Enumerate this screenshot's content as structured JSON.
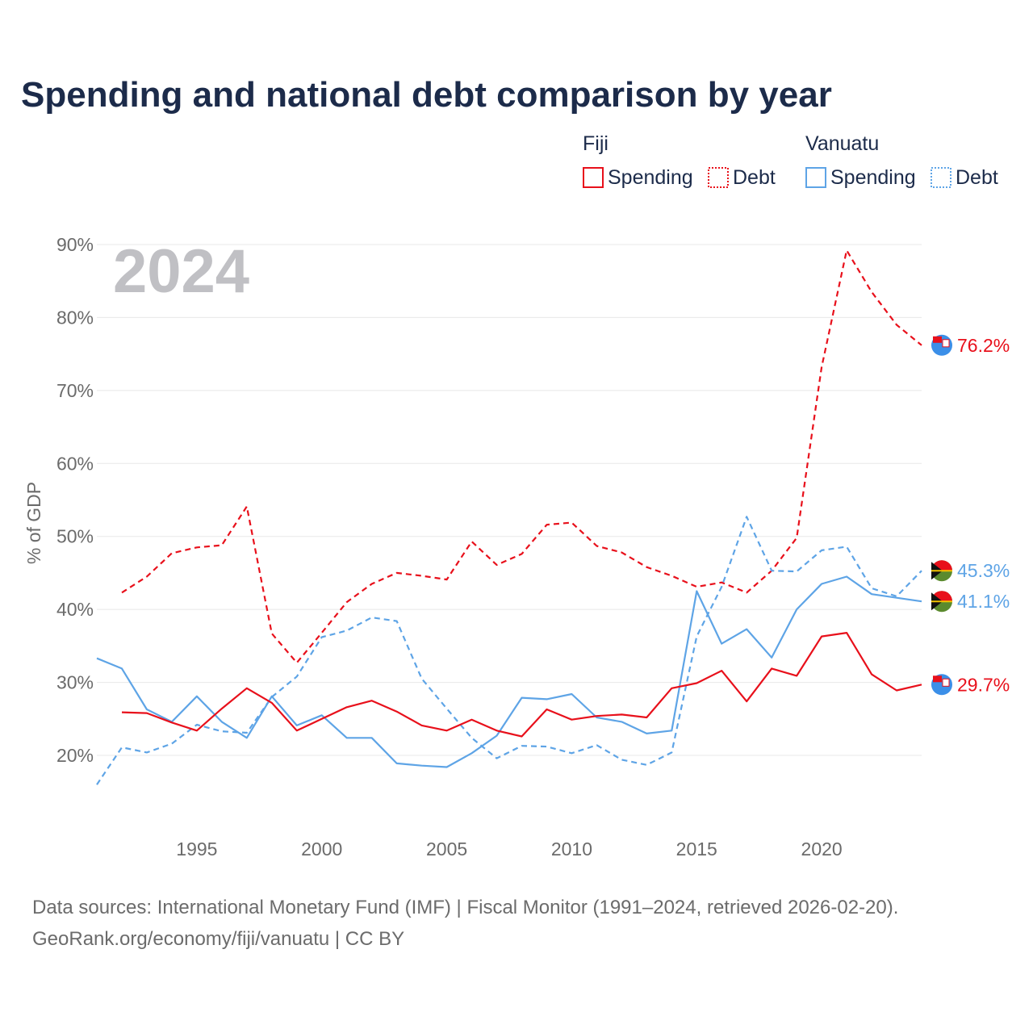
{
  "colors": {
    "fiji": "#e8101b",
    "vanuatu": "#5ea4e6",
    "title": "#1c2b4a",
    "muted": "#6b6b6b",
    "year": "#c0c0c4"
  },
  "chart_data": {
    "type": "line",
    "title": "Spending and national debt comparison by year",
    "ylabel": "% of GDP",
    "xlabel": "",
    "year_label": "2024",
    "xlim": [
      1991,
      2024
    ],
    "ylim": [
      12,
      92
    ],
    "x_ticks": [
      {
        "value": 1995,
        "label": "1995"
      },
      {
        "value": 2000,
        "label": "2000"
      },
      {
        "value": 2005,
        "label": "2005"
      },
      {
        "value": 2010,
        "label": "2010"
      },
      {
        "value": 2015,
        "label": "2015"
      },
      {
        "value": 2020,
        "label": "2020"
      }
    ],
    "y_ticks": [
      {
        "value": 20,
        "label": "20%"
      },
      {
        "value": 30,
        "label": "30%"
      },
      {
        "value": 40,
        "label": "40%"
      },
      {
        "value": 50,
        "label": "50%"
      },
      {
        "value": 60,
        "label": "60%"
      },
      {
        "value": 70,
        "label": "70%"
      },
      {
        "value": 80,
        "label": "80%"
      },
      {
        "value": 90,
        "label": "90%"
      }
    ],
    "legend": {
      "groups": [
        {
          "name": "Fiji",
          "items": [
            {
              "label": "Spending",
              "style": "solid",
              "color": "#e8101b"
            },
            {
              "label": "Debt",
              "style": "dotted",
              "color": "#e8101b"
            }
          ]
        },
        {
          "name": "Vanuatu",
          "items": [
            {
              "label": "Spending",
              "style": "solid",
              "color": "#5ea4e6"
            },
            {
              "label": "Debt",
              "style": "dotted",
              "color": "#5ea4e6"
            }
          ]
        }
      ]
    },
    "series": [
      {
        "name": "Fiji Debt",
        "country": "Fiji",
        "metric": "Debt",
        "dashed": true,
        "color": "#e8101b",
        "x": [
          1992,
          1993,
          1994,
          1995,
          1996,
          1997,
          1998,
          1999,
          2000,
          2001,
          2002,
          2003,
          2004,
          2005,
          2006,
          2007,
          2008,
          2009,
          2010,
          2011,
          2012,
          2013,
          2014,
          2015,
          2016,
          2017,
          2018,
          2019,
          2020,
          2021,
          2022,
          2023,
          2024
        ],
        "values": [
          42.3,
          44.5,
          47.7,
          48.5,
          48.8,
          54.1,
          36.7,
          32.7,
          36.8,
          41.0,
          43.5,
          45.0,
          44.6,
          44.1,
          49.3,
          46.1,
          47.6,
          51.6,
          51.9,
          48.7,
          47.8,
          45.8,
          44.6,
          43.1,
          43.7,
          42.3,
          45.3,
          49.8,
          73.2,
          89.2,
          83.5,
          79.0,
          76.2
        ],
        "end_label": "76.2%"
      },
      {
        "name": "Vanuatu Debt",
        "country": "Vanuatu",
        "metric": "Debt",
        "dashed": true,
        "color": "#5ea4e6",
        "x": [
          1991,
          1992,
          1993,
          1994,
          1995,
          1996,
          1997,
          1998,
          1999,
          2000,
          2001,
          2002,
          2003,
          2004,
          2005,
          2006,
          2007,
          2008,
          2009,
          2010,
          2011,
          2012,
          2013,
          2014,
          2015,
          2016,
          2017,
          2018,
          2019,
          2020,
          2021,
          2022,
          2023,
          2024
        ],
        "values": [
          16.0,
          21.1,
          20.4,
          21.6,
          24.2,
          23.3,
          23.1,
          28.0,
          30.8,
          36.2,
          37.1,
          38.9,
          38.4,
          30.5,
          26.4,
          22.4,
          19.6,
          21.3,
          21.2,
          20.3,
          21.4,
          19.4,
          18.7,
          20.4,
          36.3,
          43.1,
          52.7,
          45.3,
          45.2,
          48.1,
          48.6,
          42.9,
          41.8,
          45.3
        ],
        "end_label": "45.3%"
      },
      {
        "name": "Vanuatu Spending",
        "country": "Vanuatu",
        "metric": "Spending",
        "dashed": false,
        "color": "#5ea4e6",
        "x": [
          1991,
          1992,
          1993,
          1994,
          1995,
          1996,
          1997,
          1998,
          1999,
          2000,
          2001,
          2002,
          2003,
          2004,
          2005,
          2006,
          2007,
          2008,
          2009,
          2010,
          2011,
          2012,
          2013,
          2014,
          2015,
          2016,
          2017,
          2018,
          2019,
          2020,
          2021,
          2022,
          2023,
          2024
        ],
        "values": [
          33.3,
          31.9,
          26.3,
          24.6,
          28.1,
          24.6,
          22.4,
          28.1,
          24.1,
          25.5,
          22.4,
          22.4,
          18.9,
          18.6,
          18.4,
          20.3,
          22.7,
          27.9,
          27.7,
          28.4,
          25.2,
          24.6,
          23.0,
          23.4,
          42.5,
          35.3,
          37.3,
          33.4,
          40.0,
          43.5,
          44.5,
          42.1,
          41.6,
          41.1
        ],
        "end_label": "41.1%"
      },
      {
        "name": "Fiji Spending",
        "country": "Fiji",
        "metric": "Spending",
        "dashed": false,
        "color": "#e8101b",
        "x": [
          1992,
          1993,
          1994,
          1995,
          1996,
          1997,
          1998,
          1999,
          2000,
          2001,
          2002,
          2003,
          2004,
          2005,
          2006,
          2007,
          2008,
          2009,
          2010,
          2011,
          2012,
          2013,
          2014,
          2015,
          2016,
          2017,
          2018,
          2019,
          2020,
          2021,
          2022,
          2023,
          2024
        ],
        "values": [
          25.9,
          25.8,
          24.5,
          23.4,
          26.4,
          29.2,
          27.2,
          23.4,
          25.0,
          26.6,
          27.5,
          26.0,
          24.1,
          23.4,
          24.9,
          23.4,
          22.6,
          26.3,
          24.9,
          25.4,
          25.6,
          25.2,
          29.2,
          29.9,
          31.6,
          27.4,
          31.9,
          30.9,
          36.3,
          36.8,
          31.1,
          28.9,
          29.7
        ],
        "end_label": "29.7%"
      }
    ]
  },
  "source": {
    "line1": "Data sources: International Monetary Fund (IMF) | Fiscal Monitor (1991–2024, retrieved 2026-02-20).",
    "line2": "GeoRank.org/economy/fiji/vanuatu | CC BY"
  }
}
